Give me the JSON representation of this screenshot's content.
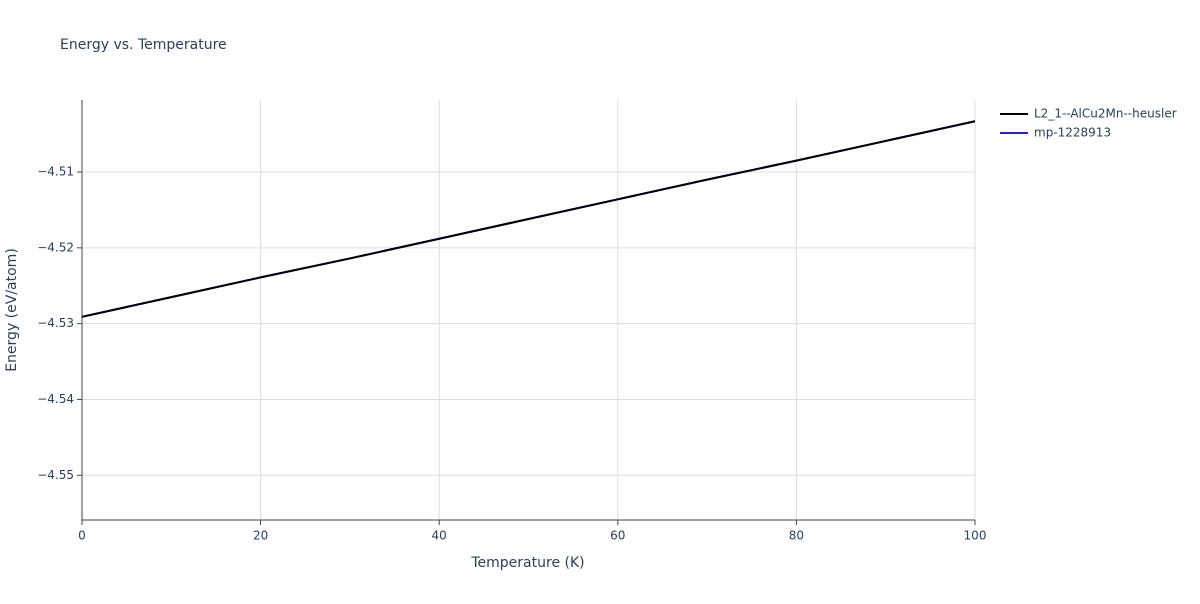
{
  "chart_data": {
    "type": "line",
    "title": "Energy vs. Temperature",
    "x_label": "Temperature (K)",
    "y_label": "Energy (eV/atom)",
    "x": [
      0,
      10,
      20,
      30,
      40,
      50,
      60,
      70,
      80,
      90,
      100
    ],
    "series": [
      {
        "name": "L2_1--AlCu2Mn--heusler",
        "color": "#000000",
        "values": [
          -4.5291,
          -4.5265,
          -4.5239,
          -4.5214,
          -4.5188,
          -4.5162,
          -4.5136,
          -4.511,
          -4.5085,
          -4.5059,
          -4.5033
        ]
      },
      {
        "name": "mp-1228913",
        "color": "#1f1fe6",
        "values": [
          -4.5291,
          -4.5265,
          -4.5239,
          -4.5214,
          -4.5188,
          -4.5162,
          -4.5136,
          -4.511,
          -4.5085,
          -4.5059,
          -4.5033
        ]
      }
    ],
    "xlim": [
      0,
      100
    ],
    "xticks": [
      0,
      20,
      40,
      60,
      80,
      100
    ],
    "ylim": [
      -4.5559,
      -4.5005
    ],
    "yticks": [
      {
        "value": -4.55,
        "label": "−4.55"
      },
      {
        "value": -4.54,
        "label": "−4.54"
      },
      {
        "value": -4.53,
        "label": "−4.53"
      },
      {
        "value": -4.52,
        "label": "−4.52"
      },
      {
        "value": -4.51,
        "label": "−4.51"
      }
    ],
    "grid": true,
    "legend": "right"
  }
}
